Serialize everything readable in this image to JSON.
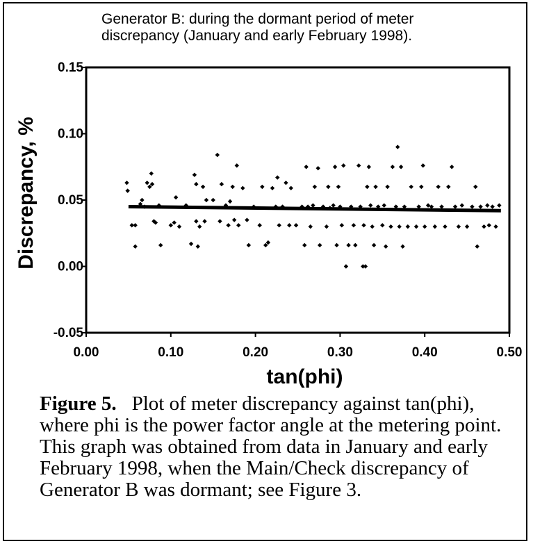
{
  "chart_data": {
    "type": "scatter",
    "title": "Generator B:  during the dormant period of meter\ndiscrepancy  (January and early February 1998).",
    "xlabel": "tan(phi)",
    "ylabel": "Discrepancy,  %",
    "xlim": [
      0.0,
      0.5
    ],
    "ylim": [
      -0.05,
      0.15
    ],
    "x_ticks": [
      0.0,
      0.1,
      0.2,
      0.3,
      0.4,
      0.5
    ],
    "x_tick_labels": [
      "0.00",
      "0.10",
      "0.20",
      "0.30",
      "0.40",
      "0.50"
    ],
    "y_ticks": [
      -0.05,
      0.0,
      0.05,
      0.1,
      0.15
    ],
    "y_tick_labels": [
      "-0.05",
      "0.00",
      "0.05",
      "0.10",
      "0.15"
    ],
    "grid": false,
    "trend_line": {
      "x": [
        0.05,
        0.49
      ],
      "y": [
        0.045,
        0.042
      ]
    },
    "series": [
      {
        "points": [
          [
            0.048,
            0.063
          ],
          [
            0.049,
            0.057
          ],
          [
            0.054,
            0.031
          ],
          [
            0.058,
            0.031
          ],
          [
            0.058,
            0.015
          ],
          [
            0.064,
            0.047
          ],
          [
            0.066,
            0.05
          ],
          [
            0.069,
            0.045
          ],
          [
            0.072,
            0.063
          ],
          [
            0.075,
            0.06
          ],
          [
            0.077,
            0.07
          ],
          [
            0.078,
            0.062
          ],
          [
            0.08,
            0.034
          ],
          [
            0.082,
            0.033
          ],
          [
            0.086,
            0.046
          ],
          [
            0.088,
            0.016
          ],
          [
            0.1,
            0.031
          ],
          [
            0.104,
            0.033
          ],
          [
            0.106,
            0.052
          ],
          [
            0.11,
            0.03
          ],
          [
            0.118,
            0.046
          ],
          [
            0.124,
            0.017
          ],
          [
            0.128,
            0.069
          ],
          [
            0.13,
            0.062
          ],
          [
            0.13,
            0.034
          ],
          [
            0.134,
            0.03
          ],
          [
            0.132,
            0.015
          ],
          [
            0.138,
            0.06
          ],
          [
            0.14,
            0.034
          ],
          [
            0.142,
            0.05
          ],
          [
            0.15,
            0.05
          ],
          [
            0.155,
            0.084
          ],
          [
            0.158,
            0.034
          ],
          [
            0.16,
            0.062
          ],
          [
            0.165,
            0.046
          ],
          [
            0.168,
            0.031
          ],
          [
            0.17,
            0.049
          ],
          [
            0.173,
            0.06
          ],
          [
            0.175,
            0.035
          ],
          [
            0.178,
            0.076
          ],
          [
            0.18,
            0.031
          ],
          [
            0.185,
            0.059
          ],
          [
            0.19,
            0.035
          ],
          [
            0.192,
            0.016
          ],
          [
            0.198,
            0.045
          ],
          [
            0.205,
            0.031
          ],
          [
            0.208,
            0.06
          ],
          [
            0.212,
            0.016
          ],
          [
            0.215,
            0.018
          ],
          [
            0.22,
            0.059
          ],
          [
            0.224,
            0.045
          ],
          [
            0.226,
            0.067
          ],
          [
            0.228,
            0.031
          ],
          [
            0.232,
            0.045
          ],
          [
            0.236,
            0.063
          ],
          [
            0.24,
            0.031
          ],
          [
            0.242,
            0.059
          ],
          [
            0.248,
            0.031
          ],
          [
            0.255,
            0.045
          ],
          [
            0.258,
            0.016
          ],
          [
            0.26,
            0.075
          ],
          [
            0.262,
            0.045
          ],
          [
            0.265,
            0.03
          ],
          [
            0.268,
            0.046
          ],
          [
            0.27,
            0.06
          ],
          [
            0.274,
            0.074
          ],
          [
            0.276,
            0.016
          ],
          [
            0.28,
            0.045
          ],
          [
            0.284,
            0.03
          ],
          [
            0.286,
            0.06
          ],
          [
            0.288,
            0.044
          ],
          [
            0.292,
            0.046
          ],
          [
            0.294,
            0.075
          ],
          [
            0.296,
            0.016
          ],
          [
            0.298,
            0.06
          ],
          [
            0.3,
            0.045
          ],
          [
            0.302,
            0.031
          ],
          [
            0.304,
            0.076
          ],
          [
            0.307,
            0.0
          ],
          [
            0.31,
            0.016
          ],
          [
            0.313,
            0.045
          ],
          [
            0.316,
            0.031
          ],
          [
            0.318,
            0.016
          ],
          [
            0.322,
            0.076
          ],
          [
            0.324,
            0.045
          ],
          [
            0.327,
            0.0
          ],
          [
            0.328,
            0.031
          ],
          [
            0.33,
            0.0
          ],
          [
            0.332,
            0.06
          ],
          [
            0.334,
            0.075
          ],
          [
            0.336,
            0.046
          ],
          [
            0.338,
            0.03
          ],
          [
            0.34,
            0.016
          ],
          [
            0.342,
            0.06
          ],
          [
            0.345,
            0.045
          ],
          [
            0.35,
            0.031
          ],
          [
            0.352,
            0.046
          ],
          [
            0.354,
            0.015
          ],
          [
            0.356,
            0.06
          ],
          [
            0.36,
            0.03
          ],
          [
            0.362,
            0.075
          ],
          [
            0.366,
            0.045
          ],
          [
            0.368,
            0.09
          ],
          [
            0.37,
            0.03
          ],
          [
            0.372,
            0.075
          ],
          [
            0.374,
            0.015
          ],
          [
            0.376,
            0.045
          ],
          [
            0.38,
            0.03
          ],
          [
            0.384,
            0.06
          ],
          [
            0.39,
            0.03
          ],
          [
            0.393,
            0.045
          ],
          [
            0.396,
            0.06
          ],
          [
            0.398,
            0.076
          ],
          [
            0.4,
            0.03
          ],
          [
            0.404,
            0.046
          ],
          [
            0.408,
            0.045
          ],
          [
            0.412,
            0.03
          ],
          [
            0.416,
            0.06
          ],
          [
            0.42,
            0.045
          ],
          [
            0.424,
            0.03
          ],
          [
            0.428,
            0.06
          ],
          [
            0.432,
            0.075
          ],
          [
            0.436,
            0.045
          ],
          [
            0.44,
            0.03
          ],
          [
            0.444,
            0.046
          ],
          [
            0.45,
            0.03
          ],
          [
            0.456,
            0.045
          ],
          [
            0.46,
            0.06
          ],
          [
            0.462,
            0.015
          ],
          [
            0.466,
            0.045
          ],
          [
            0.47,
            0.03
          ],
          [
            0.474,
            0.046
          ],
          [
            0.476,
            0.031
          ],
          [
            0.48,
            0.045
          ],
          [
            0.484,
            0.03
          ],
          [
            0.488,
            0.046
          ]
        ]
      }
    ]
  },
  "caption": {
    "label": "Figure 5.",
    "text": "Plot of meter discrepancy against tan(phi), where phi is the power factor angle at the metering point. This graph was obtained from data in January and early February 1998, when the Main/Check discrepancy of Generator B was dormant; see Figure 3."
  }
}
